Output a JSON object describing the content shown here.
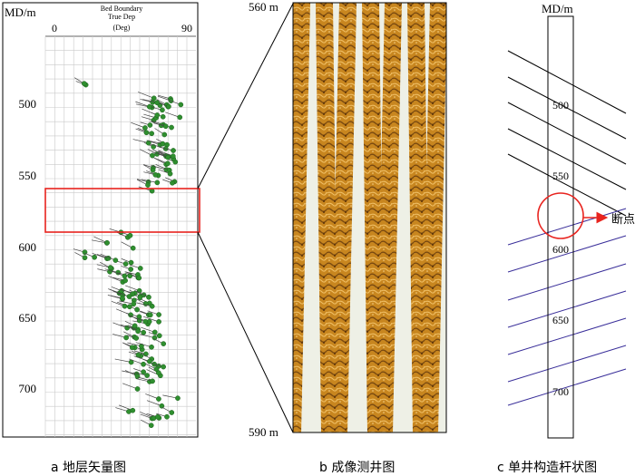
{
  "panel_a": {
    "md_label": "MD/m",
    "header": [
      "Bed Boundary",
      "True Dep",
      "(Deg)"
    ],
    "axis_min": "0",
    "axis_max": "90",
    "depth_ticks": [
      "500",
      "550",
      "600",
      "650",
      "700"
    ],
    "caption": "a  地层矢量图",
    "tadpole_color": "#2f8f2f",
    "highlight_color": "#e8231e"
  },
  "panel_b": {
    "top_depth": "560 m",
    "bottom_depth": "590 m",
    "caption": "b  成像测井图",
    "image_color": "#b8741f"
  },
  "panel_c": {
    "md_label": "MD/m",
    "depth_ticks": [
      "500",
      "550",
      "600",
      "650",
      "700"
    ],
    "fault_label": "断点",
    "caption": "c  单井构造杆状图",
    "upper_line_color": "#000000",
    "lower_line_color": "#3a2f9a",
    "fault_color": "#e8231e"
  }
}
